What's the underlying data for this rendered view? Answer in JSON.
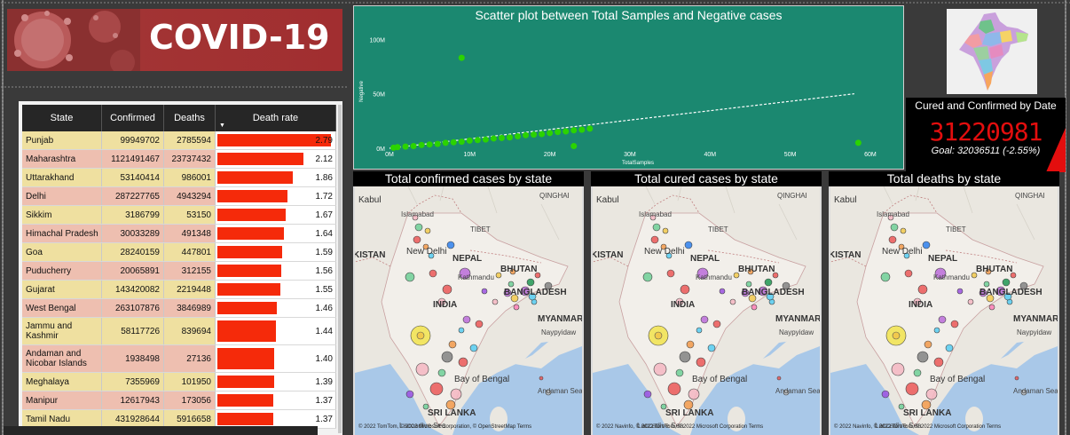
{
  "banner": {
    "title": "COVID-19"
  },
  "table": {
    "headers": {
      "state": "State",
      "confirmed": "Confirmed",
      "deaths": "Deaths",
      "death_rate": "Death rate"
    },
    "rows": [
      {
        "state": "Punjab",
        "confirmed": "99949702",
        "deaths": "2785594",
        "rate": "2.79",
        "rate_num": 2.79,
        "tone": "yellow"
      },
      {
        "state": "Maharashtra",
        "confirmed": "1121491467",
        "deaths": "23737432",
        "rate": "2.12",
        "rate_num": 2.12,
        "tone": "pink"
      },
      {
        "state": "Uttarakhand",
        "confirmed": "53140414",
        "deaths": "986001",
        "rate": "1.86",
        "rate_num": 1.86,
        "tone": "yellow"
      },
      {
        "state": "Delhi",
        "confirmed": "287227765",
        "deaths": "4943294",
        "rate": "1.72",
        "rate_num": 1.72,
        "tone": "pink"
      },
      {
        "state": "Sikkim",
        "confirmed": "3186799",
        "deaths": "53150",
        "rate": "1.67",
        "rate_num": 1.67,
        "tone": "yellow"
      },
      {
        "state": "Himachal Pradesh",
        "confirmed": "30033289",
        "deaths": "491348",
        "rate": "1.64",
        "rate_num": 1.64,
        "tone": "pink"
      },
      {
        "state": "Goa",
        "confirmed": "28240159",
        "deaths": "447801",
        "rate": "1.59",
        "rate_num": 1.59,
        "tone": "yellow"
      },
      {
        "state": "Puducherry",
        "confirmed": "20065891",
        "deaths": "312155",
        "rate": "1.56",
        "rate_num": 1.56,
        "tone": "pink"
      },
      {
        "state": "Gujarat",
        "confirmed": "143420082",
        "deaths": "2219448",
        "rate": "1.55",
        "rate_num": 1.55,
        "tone": "yellow"
      },
      {
        "state": "West Bengal",
        "confirmed": "263107876",
        "deaths": "3846989",
        "rate": "1.46",
        "rate_num": 1.46,
        "tone": "pink"
      },
      {
        "state": "Jammu and Kashmir",
        "confirmed": "58117726",
        "deaths": "839694",
        "rate": "1.44",
        "rate_num": 1.44,
        "tone": "yellow"
      },
      {
        "state": "Andaman and Nicobar Islands",
        "confirmed": "1938498",
        "deaths": "27136",
        "rate": "1.40",
        "rate_num": 1.4,
        "tone": "pink"
      },
      {
        "state": "Meghalaya",
        "confirmed": "7355969",
        "deaths": "101950",
        "rate": "1.39",
        "rate_num": 1.39,
        "tone": "yellow"
      },
      {
        "state": "Manipur",
        "confirmed": "12617943",
        "deaths": "173056",
        "rate": "1.37",
        "rate_num": 1.37,
        "tone": "pink"
      },
      {
        "state": "Tamil Nadu",
        "confirmed": "431928644",
        "deaths": "5916658",
        "rate": "1.37",
        "rate_num": 1.37,
        "tone": "yellow"
      }
    ]
  },
  "scatter": {
    "title": "Scatter plot between Total Samples and Negative cases"
  },
  "chart_data": {
    "type": "scatter",
    "title": "Scatter plot between Total Samples and Negative cases",
    "xlabel": "TotalSamples",
    "ylabel": "Negative",
    "x_ticks": [
      "0M",
      "10M",
      "20M",
      "30M",
      "40M",
      "50M",
      "60M"
    ],
    "y_ticks": [
      "0M",
      "50M",
      "100M"
    ],
    "xlim": [
      0,
      62
    ],
    "ylim": [
      0,
      110
    ],
    "trend_line": true,
    "series": [
      {
        "x": [
          0.5,
          1,
          2,
          3,
          4,
          5,
          6,
          7,
          8,
          9,
          10,
          11,
          12,
          13,
          14,
          15,
          16,
          17,
          18,
          19,
          20,
          21,
          22,
          23,
          24,
          25,
          9,
          23,
          58.5
        ],
        "y": [
          0.5,
          1,
          1.5,
          2,
          3,
          3.5,
          4,
          5,
          5.5,
          6,
          7,
          7.5,
          8,
          9,
          9.5,
          10,
          11,
          12,
          12.5,
          13,
          14,
          15,
          15.5,
          16.5,
          17,
          18,
          83,
          2,
          5
        ]
      }
    ]
  },
  "mini_map": {
    "name": "india-mini-map"
  },
  "kpi": {
    "title": "Cured and Confirmed by Date",
    "value": "31220981",
    "goal": "Goal: 32036511 (-2.55%)"
  },
  "maps": [
    {
      "title": "Total confirmed cases by state"
    },
    {
      "title": "Total cured cases by state"
    },
    {
      "title": "Total deaths by state"
    }
  ],
  "map_labels": {
    "kabul": "Kabul",
    "islamabad": "Islamabad",
    "qinghai": "QINGHAI",
    "tibet": "TIBET",
    "pakistan": "KISTAN",
    "new_delhi": "New Delhi",
    "nepal": "NEPAL",
    "kathmandu": "Kathmandu",
    "bhutan": "BHUTAN",
    "india": "INDIA",
    "bangladesh": "BANGLADESH",
    "myanmar": "MYANMAR",
    "naypyidaw": "Naypyidaw",
    "bay_of_bengal": "Bay of Bengal",
    "andaman_sea": "Andaman Sea",
    "sri_lanka": "SRI LANKA",
    "laccadive": "Laccadive Sea",
    "attribution_1": "© 2022 TomTom, © 2022 Microsoft Corporation, © OpenStreetMap  Terms",
    "attribution_2": "© 2022 Navinfo, © 2022 TomTom, © 2022 Microsoft Corporation  Terms",
    "attribution_3": "© 2022 Navinfo, © 2022 TomTom, © 2022 Microsoft Corporation  Terms",
    "microsoft_bing": "Microsoft Bing"
  },
  "colors": {
    "banner": "#a23434",
    "scatter_bg": "#1b8870",
    "bar": "#f52a0a",
    "kpi_value": "#e30e0e"
  }
}
